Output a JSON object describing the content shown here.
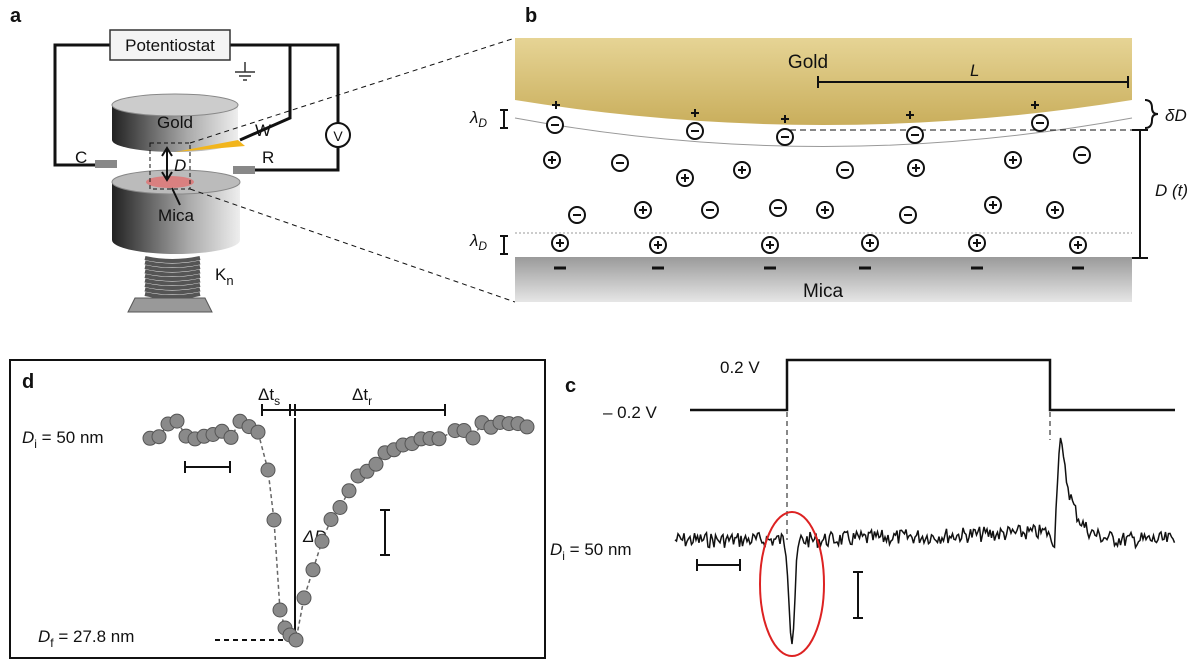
{
  "panels": {
    "a": {
      "label": "a",
      "potentiostat": "Potentiostat",
      "gold": "Gold",
      "working": "W",
      "counter": "C",
      "reference": "R",
      "distance": "D",
      "voltmeter": "V",
      "mica": "Mica",
      "spring": {
        "main": "K",
        "sub": "n"
      }
    },
    "b": {
      "label": "b",
      "gold": "Gold",
      "length": "L",
      "debye_top": {
        "main": "λ",
        "sub": "D"
      },
      "debye_bottom": {
        "main": "λ",
        "sub": "D"
      },
      "deflection": "δD",
      "gap": "D (t)",
      "mica": "Mica"
    },
    "c": {
      "label": "c",
      "high_voltage": "0.2 V",
      "low_voltage": "– 0.2 V",
      "initial_distance": {
        "main": "D",
        "sub": "i",
        "rest": " = 50 nm"
      }
    },
    "d": {
      "label": "d",
      "initial_distance": {
        "main": "D",
        "sub": "i",
        "rest": " = 50 nm"
      },
      "final_distance": {
        "main": "D",
        "sub": "f",
        "rest": " = 27.8 nm"
      },
      "step_time": {
        "main": "Δt",
        "sub": "s"
      },
      "relaxation_time": {
        "main": "Δt",
        "sub": "r"
      },
      "distance_change": "ΔD"
    }
  }
}
